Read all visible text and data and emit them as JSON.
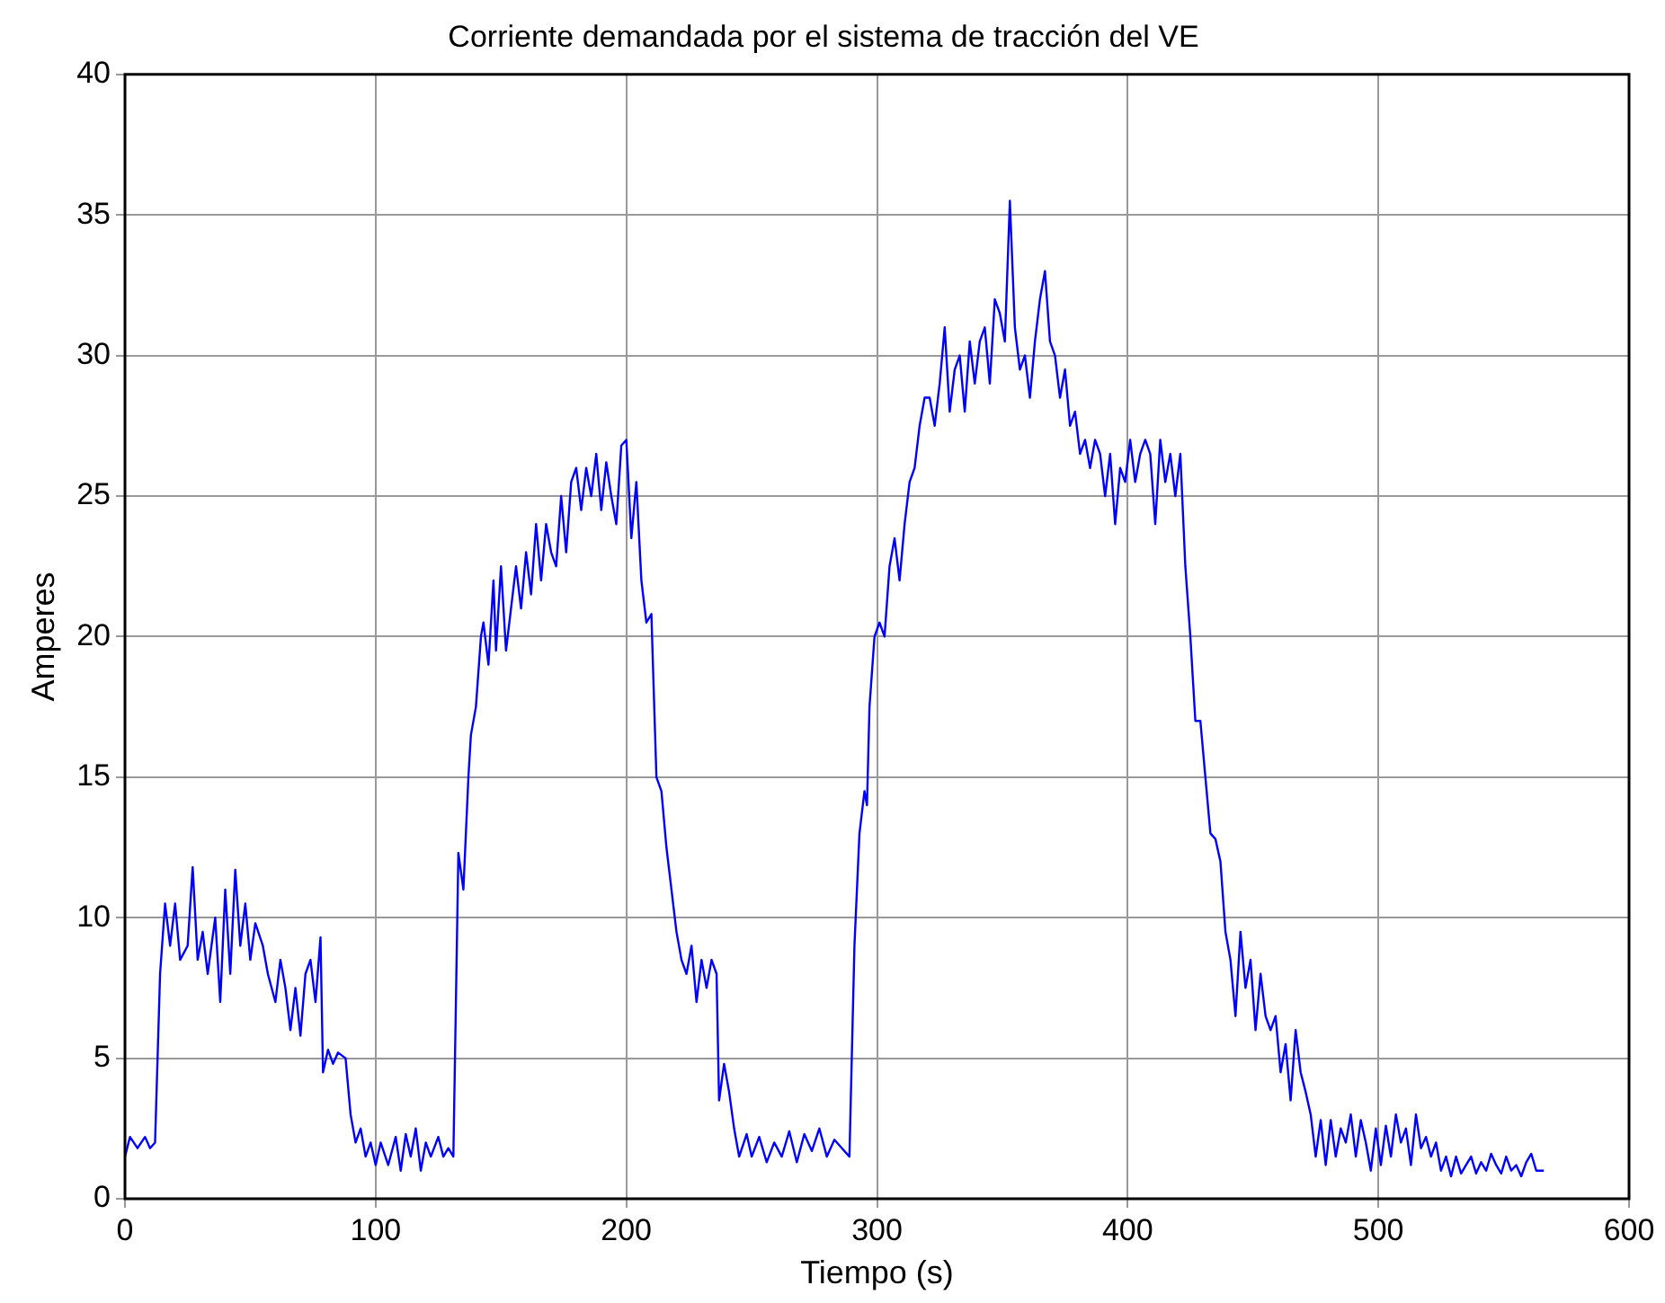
{
  "chart_data": {
    "type": "line",
    "title": "Corriente demandada por el sistema de tracción del VE",
    "xlabel": "Tiempo (s)",
    "ylabel": "Amperes",
    "xlim": [
      0,
      600
    ],
    "xticks": [
      0,
      100,
      200,
      300,
      400,
      500,
      600
    ],
    "ylim": [
      0,
      40
    ],
    "yticks": [
      0,
      5,
      10,
      15,
      20,
      25,
      30,
      35,
      40
    ],
    "grid": true,
    "legend": false,
    "marker": "none",
    "line_style": "solid",
    "series": [
      {
        "color": "#0000ff",
        "x": [
          0,
          2,
          5,
          8,
          10,
          12,
          14,
          16,
          18,
          20,
          22,
          25,
          27,
          29,
          31,
          33,
          36,
          38,
          40,
          42,
          44,
          46,
          48,
          50,
          52,
          55,
          57,
          60,
          62,
          64,
          66,
          68,
          70,
          72,
          74,
          76,
          78,
          79,
          81,
          83,
          85,
          88,
          90,
          92,
          94,
          96,
          98,
          100,
          102,
          105,
          108,
          110,
          112,
          114,
          116,
          118,
          120,
          122,
          125,
          127,
          129,
          131,
          133,
          135,
          137,
          138,
          140,
          142,
          143,
          145,
          147,
          148,
          150,
          152,
          154,
          156,
          158,
          160,
          162,
          164,
          166,
          168,
          170,
          172,
          174,
          176,
          178,
          180,
          182,
          184,
          186,
          188,
          190,
          192,
          194,
          196,
          198,
          200,
          202,
          204,
          206,
          208,
          210,
          212,
          214,
          216,
          218,
          220,
          222,
          224,
          226,
          228,
          230,
          232,
          234,
          236,
          237,
          239,
          241,
          243,
          245,
          248,
          250,
          253,
          256,
          259,
          262,
          265,
          268,
          271,
          274,
          277,
          280,
          283,
          286,
          289,
          291,
          293,
          295,
          296,
          297,
          299,
          301,
          303,
          305,
          307,
          309,
          311,
          313,
          315,
          317,
          319,
          321,
          323,
          325,
          327,
          329,
          331,
          333,
          335,
          337,
          339,
          341,
          343,
          345,
          347,
          349,
          351,
          353,
          355,
          357,
          359,
          361,
          363,
          365,
          367,
          369,
          371,
          373,
          375,
          377,
          379,
          381,
          383,
          385,
          387,
          389,
          391,
          393,
          395,
          397,
          399,
          401,
          403,
          405,
          407,
          409,
          411,
          413,
          415,
          417,
          419,
          421,
          423,
          425,
          427,
          429,
          431,
          433,
          435,
          437,
          439,
          441,
          443,
          445,
          447,
          449,
          451,
          453,
          455,
          457,
          459,
          461,
          463,
          465,
          467,
          469,
          471,
          473,
          475,
          477,
          479,
          481,
          483,
          485,
          487,
          489,
          491,
          493,
          495,
          497,
          499,
          501,
          503,
          505,
          507,
          509,
          511,
          513,
          515,
          517,
          519,
          521,
          523,
          525,
          527,
          529,
          531,
          533,
          535,
          537,
          539,
          541,
          543,
          545,
          547,
          549,
          551,
          553,
          555,
          557,
          559,
          561,
          563,
          566
        ],
        "values": [
          1.5,
          2.2,
          1.8,
          2.2,
          1.8,
          2.0,
          8,
          10.5,
          9,
          10.5,
          8.5,
          9,
          11.8,
          8.5,
          9.5,
          8,
          10,
          7,
          11,
          8,
          11.7,
          9,
          10.5,
          8.5,
          9.8,
          9,
          8,
          7,
          8.5,
          7.5,
          6,
          7.5,
          5.8,
          8,
          8.5,
          7,
          9.3,
          4.5,
          5.3,
          4.8,
          5.2,
          5,
          3,
          2,
          2.5,
          1.5,
          2,
          1.2,
          2,
          1.2,
          2.2,
          1,
          2.3,
          1.5,
          2.5,
          1.0,
          2,
          1.5,
          2.2,
          1.5,
          1.8,
          1.5,
          12.3,
          11,
          15,
          16.5,
          17.5,
          20,
          20.5,
          19,
          22,
          19.5,
          22.5,
          19.5,
          21,
          22.5,
          21,
          23,
          21.5,
          24,
          22,
          24,
          23,
          22.5,
          25,
          23,
          25.5,
          26,
          24.5,
          26,
          25,
          26.5,
          24.5,
          26.2,
          25,
          24,
          26.8,
          27,
          23.5,
          25.5,
          22,
          20.5,
          20.8,
          15,
          14.5,
          12.5,
          11,
          9.5,
          8.5,
          8,
          9,
          7,
          8.5,
          7.5,
          8.5,
          8,
          3.5,
          4.8,
          3.8,
          2.5,
          1.5,
          2.3,
          1.5,
          2.2,
          1.3,
          2,
          1.5,
          2.4,
          1.3,
          2.3,
          1.7,
          2.5,
          1.5,
          2.1,
          1.8,
          1.5,
          9,
          13,
          14.5,
          14,
          17.5,
          20,
          20.5,
          20,
          22.5,
          23.5,
          22,
          24,
          25.5,
          26,
          27.5,
          28.5,
          28.5,
          27.5,
          29,
          31,
          28,
          29.5,
          30,
          28,
          30.5,
          29,
          30.5,
          31,
          29,
          32,
          31.5,
          30.5,
          35.5,
          31,
          29.5,
          30,
          28.5,
          30.5,
          32,
          33,
          30.5,
          30,
          28.5,
          29.5,
          27.5,
          28,
          26.5,
          27,
          26,
          27,
          26.5,
          25,
          26.5,
          24,
          26,
          25.5,
          27,
          25.5,
          26.5,
          27,
          26.5,
          24,
          27,
          25.5,
          26.5,
          25,
          26.5,
          22.5,
          20,
          17,
          17,
          15,
          13,
          12.8,
          12,
          9.5,
          8.5,
          6.5,
          9.5,
          7.5,
          8.5,
          6,
          8,
          6.5,
          6,
          6.5,
          4.5,
          5.5,
          3.5,
          6,
          4.5,
          3.8,
          3.0,
          1.5,
          2.8,
          1.2,
          2.8,
          1.5,
          2.5,
          2.0,
          3.0,
          1.5,
          2.8,
          2.0,
          1.0,
          2.5,
          1.2,
          2.6,
          1.5,
          3,
          2,
          2.5,
          1.2,
          3,
          1.8,
          2.2,
          1.5,
          2,
          1,
          1.5,
          0.8,
          1.5,
          0.9,
          1.2,
          1.5,
          0.9,
          1.3,
          1.0,
          1.6,
          1.2,
          0.9,
          1.5,
          1,
          1.2,
          0.8,
          1.3,
          1.6,
          1,
          1
        ]
      }
    ]
  }
}
